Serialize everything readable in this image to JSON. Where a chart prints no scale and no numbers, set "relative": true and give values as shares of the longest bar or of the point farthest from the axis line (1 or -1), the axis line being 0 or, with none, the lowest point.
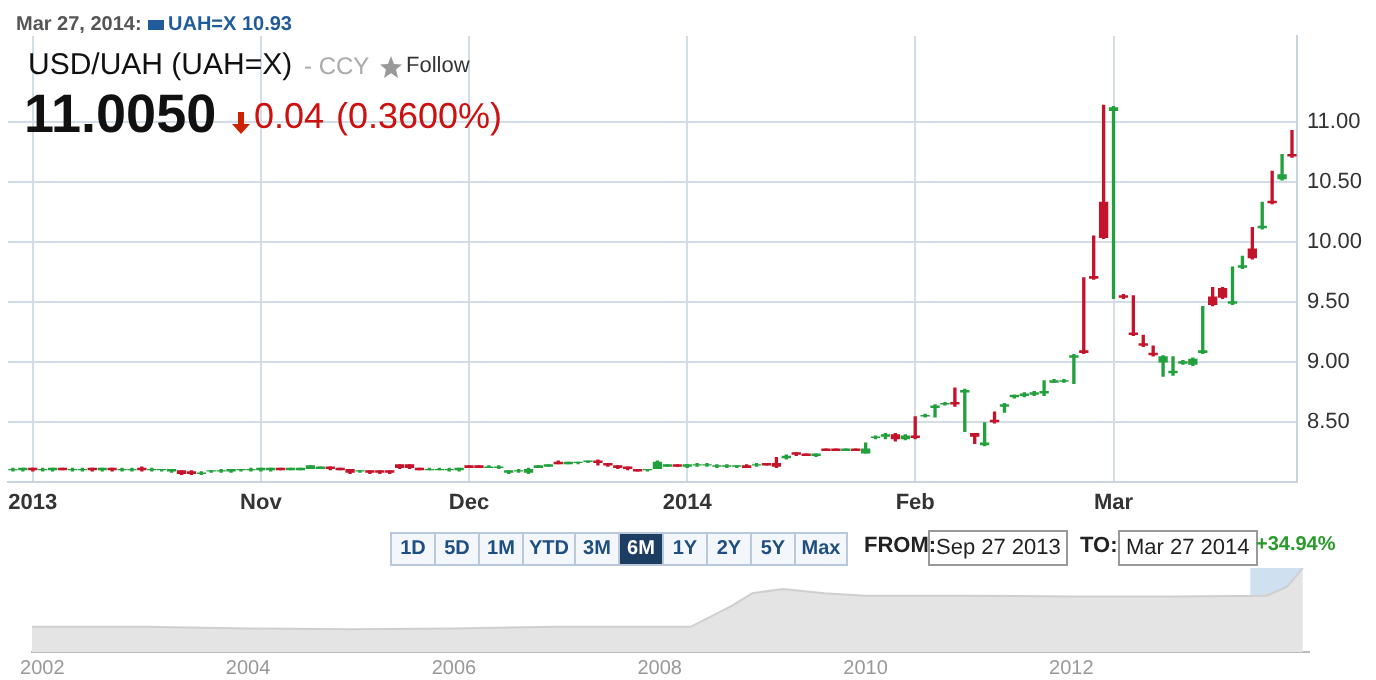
{
  "chart_data": [
    {
      "type": "candlestick",
      "title": "USD/UAH (UAH=X)",
      "subtitle": "- CCY",
      "annotations": [
        "Mar 27, 2014:",
        "UAH=X 10.93",
        "Follow",
        "11.0050",
        "0.04",
        "(0.3600%)",
        "1D",
        "5D",
        "1M",
        "YTD",
        "3M",
        "6M",
        "1Y",
        "2Y",
        "5Y",
        "Max",
        "FROM:",
        "Sep 27 2013",
        "TO:",
        "Mar 27 2014",
        "+34.94%"
      ],
      "categories": [
        null,
        null,
        "2013",
        null,
        null,
        null,
        null,
        null,
        null,
        null,
        null,
        null,
        null,
        null,
        null,
        null,
        null,
        null,
        null,
        null,
        null,
        null,
        null,
        null,
        null,
        "Nov",
        null,
        null,
        null,
        null,
        null,
        null,
        null,
        null,
        null,
        null,
        null,
        null,
        null,
        null,
        null,
        null,
        null,
        null,
        null,
        null,
        "Dec",
        null,
        null,
        null,
        null,
        null,
        null,
        null,
        null,
        null,
        null,
        null,
        null,
        null,
        null,
        null,
        null,
        null,
        null,
        null,
        null,
        null,
        "2014",
        null,
        null,
        null,
        null,
        null,
        null,
        null,
        null,
        null,
        null,
        null,
        null,
        null,
        null,
        null,
        null,
        null,
        null,
        null,
        null,
        null,
        null,
        "Feb",
        null,
        null,
        null,
        null,
        null,
        null,
        null,
        null,
        null,
        null,
        null,
        null,
        null,
        null,
        null,
        null,
        null,
        null,
        null,
        "Mar",
        null,
        null,
        null,
        null,
        null,
        null,
        null,
        null,
        null,
        null,
        null,
        null,
        null,
        null,
        null,
        null,
        null,
        null
      ],
      "ohlc": [
        [
          8.1,
          8.11,
          8.09,
          8.1
        ],
        [
          8.1,
          8.11,
          8.09,
          8.11
        ],
        [
          8.11,
          8.11,
          8.09,
          8.1
        ],
        [
          8.1,
          8.11,
          8.09,
          8.1
        ],
        [
          8.1,
          8.11,
          8.09,
          8.11
        ],
        [
          8.11,
          8.11,
          8.1,
          8.1
        ],
        [
          8.1,
          8.11,
          8.09,
          8.1
        ],
        [
          8.1,
          8.11,
          8.09,
          8.1
        ],
        [
          8.11,
          8.11,
          8.09,
          8.1
        ],
        [
          8.1,
          8.11,
          8.09,
          8.11
        ],
        [
          8.11,
          8.11,
          8.09,
          8.1
        ],
        [
          8.1,
          8.11,
          8.09,
          8.1
        ],
        [
          8.1,
          8.11,
          8.09,
          8.1
        ],
        [
          8.11,
          8.12,
          8.09,
          8.1
        ],
        [
          8.1,
          8.11,
          8.09,
          8.1
        ],
        [
          8.1,
          8.1,
          8.09,
          8.1
        ],
        [
          8.09,
          8.1,
          8.08,
          8.1
        ],
        [
          8.09,
          8.09,
          8.06,
          8.07
        ],
        [
          8.08,
          8.09,
          8.06,
          8.07
        ],
        [
          8.07,
          8.08,
          8.06,
          8.07
        ],
        [
          8.09,
          8.09,
          8.08,
          8.09
        ],
        [
          8.09,
          8.1,
          8.08,
          8.09
        ],
        [
          8.09,
          8.1,
          8.08,
          8.1
        ],
        [
          8.1,
          8.1,
          8.09,
          8.1
        ],
        [
          8.1,
          8.11,
          8.09,
          8.1
        ],
        [
          8.1,
          8.11,
          8.09,
          8.11
        ],
        [
          8.1,
          8.11,
          8.09,
          8.11
        ],
        [
          8.11,
          8.11,
          8.1,
          8.1
        ],
        [
          8.1,
          8.11,
          8.1,
          8.11
        ],
        [
          8.1,
          8.11,
          8.1,
          8.11
        ],
        [
          8.11,
          8.13,
          8.11,
          8.13
        ],
        [
          8.11,
          8.12,
          8.11,
          8.12
        ],
        [
          8.12,
          8.12,
          8.1,
          8.11
        ],
        [
          8.11,
          8.11,
          8.1,
          8.1
        ],
        [
          8.1,
          8.1,
          8.07,
          8.08
        ],
        [
          8.09,
          8.09,
          8.08,
          8.09
        ],
        [
          8.09,
          8.09,
          8.07,
          8.08
        ],
        [
          8.09,
          8.09,
          8.07,
          8.08
        ],
        [
          8.09,
          8.09,
          8.07,
          8.08
        ],
        [
          8.14,
          8.14,
          8.11,
          8.12
        ],
        [
          8.14,
          8.14,
          8.11,
          8.12
        ],
        [
          8.11,
          8.11,
          8.1,
          8.1
        ],
        [
          8.1,
          8.11,
          8.1,
          8.1
        ],
        [
          8.1,
          8.11,
          8.1,
          8.1
        ],
        [
          8.1,
          8.11,
          8.09,
          8.1
        ],
        [
          8.1,
          8.11,
          8.09,
          8.11
        ],
        [
          8.13,
          8.13,
          8.12,
          8.12
        ],
        [
          8.13,
          8.13,
          8.12,
          8.12
        ],
        [
          8.12,
          8.13,
          8.12,
          8.12
        ],
        [
          8.12,
          8.13,
          8.11,
          8.12
        ],
        [
          8.08,
          8.09,
          8.07,
          8.09
        ],
        [
          8.09,
          8.1,
          8.08,
          8.09
        ],
        [
          8.08,
          8.11,
          8.07,
          8.1
        ],
        [
          8.12,
          8.13,
          8.12,
          8.13
        ],
        [
          8.13,
          8.14,
          8.13,
          8.14
        ],
        [
          8.16,
          8.17,
          8.15,
          8.15
        ],
        [
          8.15,
          8.16,
          8.15,
          8.16
        ],
        [
          8.16,
          8.16,
          8.15,
          8.16
        ],
        [
          8.17,
          8.17,
          8.16,
          8.17
        ],
        [
          8.17,
          8.18,
          8.14,
          8.16
        ],
        [
          8.15,
          8.15,
          8.13,
          8.14
        ],
        [
          8.13,
          8.13,
          8.11,
          8.12
        ],
        [
          8.12,
          8.12,
          8.1,
          8.11
        ],
        [
          8.1,
          8.1,
          8.09,
          8.09
        ],
        [
          8.1,
          8.1,
          8.09,
          8.1
        ],
        [
          8.11,
          8.17,
          8.11,
          8.16
        ],
        [
          8.13,
          8.14,
          8.13,
          8.14
        ],
        [
          8.14,
          8.14,
          8.13,
          8.13
        ],
        [
          8.13,
          8.14,
          8.12,
          8.14
        ],
        [
          8.14,
          8.15,
          8.13,
          8.14
        ],
        [
          8.14,
          8.15,
          8.13,
          8.14
        ],
        [
          8.13,
          8.14,
          8.12,
          8.13
        ],
        [
          8.13,
          8.14,
          8.12,
          8.13
        ],
        [
          8.13,
          8.13,
          8.12,
          8.13
        ],
        [
          8.13,
          8.14,
          8.12,
          8.12
        ],
        [
          8.14,
          8.15,
          8.13,
          8.14
        ],
        [
          8.15,
          8.15,
          8.14,
          8.14
        ],
        [
          8.15,
          8.2,
          8.12,
          8.13
        ],
        [
          8.2,
          8.22,
          8.19,
          8.21
        ],
        [
          8.24,
          8.24,
          8.22,
          8.23
        ],
        [
          8.23,
          8.23,
          8.22,
          8.22
        ],
        [
          8.22,
          8.23,
          8.21,
          8.23
        ],
        [
          8.27,
          8.27,
          8.26,
          8.26
        ],
        [
          8.27,
          8.27,
          8.26,
          8.26
        ],
        [
          8.26,
          8.27,
          8.26,
          8.27
        ],
        [
          8.27,
          8.27,
          8.26,
          8.26
        ],
        [
          8.24,
          8.32,
          8.24,
          8.27
        ],
        [
          8.37,
          8.38,
          8.36,
          8.37
        ],
        [
          8.38,
          8.4,
          8.36,
          8.39
        ],
        [
          8.39,
          8.4,
          8.34,
          8.36
        ],
        [
          8.36,
          8.39,
          8.35,
          8.38
        ],
        [
          8.38,
          8.54,
          8.36,
          8.37
        ],
        [
          8.55,
          8.56,
          8.54,
          8.55
        ],
        [
          8.62,
          8.64,
          8.54,
          8.63
        ],
        [
          8.65,
          8.66,
          8.64,
          8.65
        ],
        [
          8.66,
          8.78,
          8.63,
          8.65
        ],
        [
          8.75,
          8.77,
          8.42,
          8.76
        ],
        [
          8.4,
          8.4,
          8.32,
          8.38
        ],
        [
          8.31,
          8.49,
          8.3,
          8.32
        ],
        [
          8.51,
          8.58,
          8.49,
          8.5
        ],
        [
          8.63,
          8.65,
          8.58,
          8.64
        ],
        [
          8.71,
          8.72,
          8.7,
          8.72
        ],
        [
          8.72,
          8.74,
          8.71,
          8.73
        ],
        [
          8.73,
          8.75,
          8.72,
          8.74
        ],
        [
          8.74,
          8.84,
          8.72,
          8.75
        ],
        [
          8.83,
          8.85,
          8.83,
          8.84
        ],
        [
          8.84,
          8.85,
          8.83,
          8.84
        ],
        [
          9.04,
          9.06,
          8.82,
          9.05
        ],
        [
          9.09,
          9.7,
          9.07,
          9.08
        ],
        [
          9.71,
          10.05,
          9.69,
          9.7
        ],
        [
          10.33,
          11.14,
          10.03,
          10.04
        ],
        [
          11.1,
          11.13,
          9.53,
          11.12
        ],
        [
          9.55,
          9.56,
          9.53,
          9.54
        ],
        [
          9.24,
          9.55,
          9.22,
          9.23
        ],
        [
          9.15,
          9.22,
          9.13,
          9.14
        ],
        [
          9.07,
          9.13,
          9.05,
          9.06
        ],
        [
          9.0,
          9.05,
          8.88,
          9.04
        ],
        [
          8.91,
          9.04,
          8.89,
          8.92
        ],
        [
          8.99,
          9.01,
          8.98,
          9.0
        ],
        [
          8.98,
          9.03,
          8.97,
          9.02
        ],
        [
          9.08,
          9.46,
          9.07,
          9.09
        ],
        [
          9.54,
          9.62,
          9.47,
          9.48
        ],
        [
          9.61,
          9.62,
          9.53,
          9.54
        ],
        [
          9.49,
          9.79,
          9.48,
          9.5
        ],
        [
          9.79,
          9.88,
          9.78,
          9.8
        ],
        [
          9.94,
          10.12,
          9.86,
          9.87
        ],
        [
          10.12,
          10.33,
          10.11,
          10.13
        ],
        [
          10.34,
          10.59,
          10.32,
          10.33
        ],
        [
          10.53,
          10.73,
          10.52,
          10.56
        ],
        [
          10.73,
          10.93,
          10.71,
          10.72
        ]
      ],
      "colors": [
        "#22a03c",
        "#22a03c",
        "#c4142b",
        "#22a03c",
        "#22a03c",
        "#c4142b",
        "#22a03c",
        "#22a03c",
        "#c4142b",
        "#22a03c",
        "#c4142b",
        "#22a03c",
        "#22a03c",
        "#c4142b",
        "#22a03c",
        "#22a03c",
        "#22a03c",
        "#c4142b",
        "#c4142b",
        "#22a03c",
        "#22a03c",
        "#22a03c",
        "#22a03c",
        "#22a03c",
        "#22a03c",
        "#22a03c",
        "#22a03c",
        "#c4142b",
        "#22a03c",
        "#22a03c",
        "#22a03c",
        "#22a03c",
        "#c4142b",
        "#c4142b",
        "#c4142b",
        "#22a03c",
        "#c4142b",
        "#c4142b",
        "#c4142b",
        "#c4142b",
        "#c4142b",
        "#c4142b",
        "#22a03c",
        "#22a03c",
        "#22a03c",
        "#22a03c",
        "#c4142b",
        "#c4142b",
        "#22a03c",
        "#22a03c",
        "#22a03c",
        "#22a03c",
        "#22a03c",
        "#22a03c",
        "#22a03c",
        "#c4142b",
        "#22a03c",
        "#22a03c",
        "#22a03c",
        "#c4142b",
        "#c4142b",
        "#c4142b",
        "#c4142b",
        "#c4142b",
        "#22a03c",
        "#22a03c",
        "#22a03c",
        "#c4142b",
        "#22a03c",
        "#22a03c",
        "#22a03c",
        "#22a03c",
        "#22a03c",
        "#22a03c",
        "#c4142b",
        "#22a03c",
        "#c4142b",
        "#c4142b",
        "#22a03c",
        "#c4142b",
        "#c4142b",
        "#22a03c",
        "#c4142b",
        "#c4142b",
        "#22a03c",
        "#c4142b",
        "#22a03c",
        "#22a03c",
        "#22a03c",
        "#c4142b",
        "#22a03c",
        "#c4142b",
        "#22a03c",
        "#22a03c",
        "#22a03c",
        "#c4142b",
        "#22a03c",
        "#c4142b",
        "#22a03c",
        "#c4142b",
        "#22a03c",
        "#22a03c",
        "#22a03c",
        "#22a03c",
        "#22a03c",
        "#22a03c",
        "#22a03c",
        "#22a03c",
        "#c4142b",
        "#c4142b",
        "#c4142b",
        "#22a03c",
        "#c4142b",
        "#c4142b",
        "#c4142b",
        "#c4142b",
        "#22a03c",
        "#22a03c",
        "#22a03c",
        "#22a03c",
        "#22a03c",
        "#c4142b",
        "#c4142b",
        "#22a03c",
        "#22a03c",
        "#c4142b",
        "#22a03c",
        "#c4142b",
        "#22a03c",
        "#c4142b"
      ],
      "ylim": [
        8.0,
        11.72
      ],
      "yticks": [
        {
          "value": 8.5,
          "label": "8.50"
        },
        {
          "value": 9,
          "label": "9.00"
        },
        {
          "value": 9.5,
          "label": "9.50"
        },
        {
          "value": 10,
          "label": "10.00"
        },
        {
          "value": 10.5,
          "label": "10.50"
        },
        {
          "value": 11,
          "label": "11.00"
        }
      ],
      "grid": true
    },
    {
      "type": "area",
      "relative": true,
      "x": [
        2001.9,
        2003,
        2004,
        2005,
        2006,
        2007,
        2008.3,
        2008.7,
        2008.9,
        2009.2,
        2009.6,
        2010,
        2011,
        2012,
        2013,
        2013.9,
        2014.1,
        2014.25
      ],
      "values": [
        0.3,
        0.3,
        0.28,
        0.27,
        0.28,
        0.3,
        0.3,
        0.55,
        0.7,
        0.75,
        0.7,
        0.67,
        0.67,
        0.66,
        0.66,
        0.67,
        0.78,
        1.0
      ],
      "color": "#e4e4e4",
      "xlim": [
        2001.9,
        2014.3
      ],
      "xticks": [
        2002,
        2004,
        2006,
        2008,
        2010,
        2012
      ],
      "grid": "x",
      "bands": [
        {
          "axis": "x",
          "from": 2013.74,
          "to": 2014.24,
          "color": "#cfe0f0"
        }
      ]
    }
  ]
}
